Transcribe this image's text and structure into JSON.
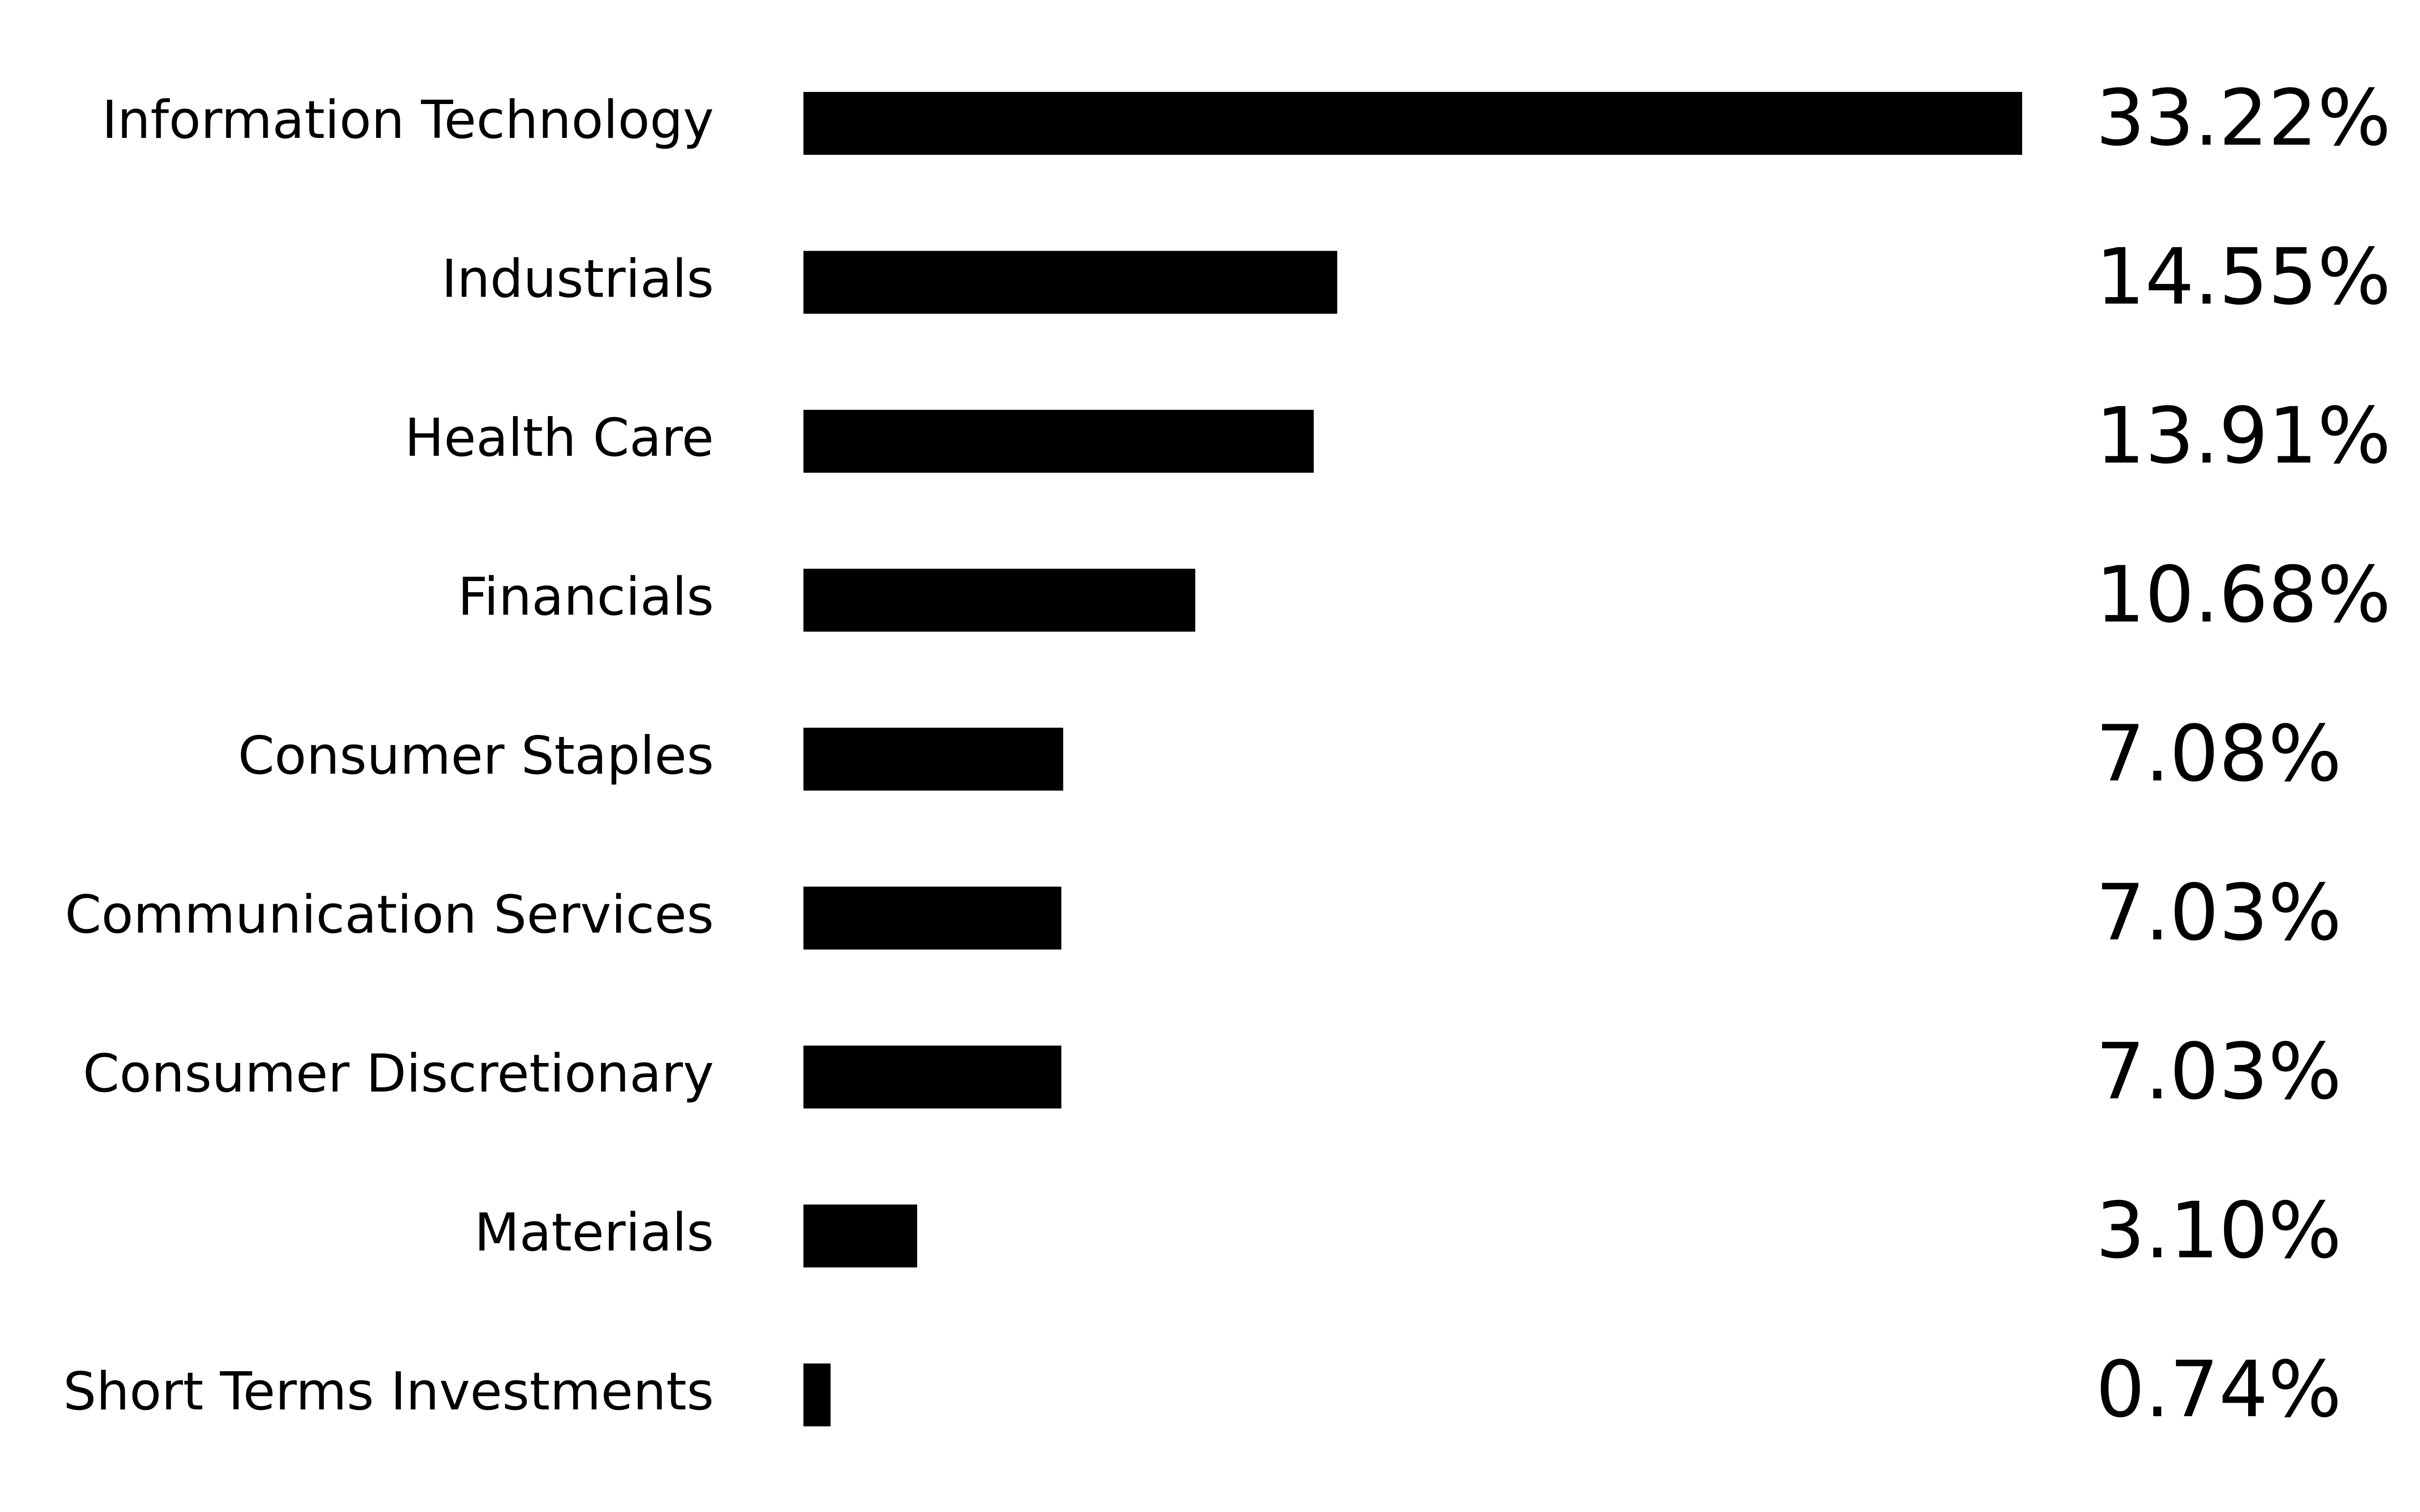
{
  "chart_data": {
    "type": "bar",
    "orientation": "horizontal",
    "categories": [
      "Information Technology",
      "Industrials",
      "Health Care",
      "Financials",
      "Consumer Staples",
      "Communication Services",
      "Consumer Discretionary",
      "Materials",
      "Short Terms Investments"
    ],
    "values": [
      33.22,
      14.55,
      13.91,
      10.68,
      7.08,
      7.03,
      7.03,
      3.1,
      0.74
    ],
    "value_labels": [
      "33.22%",
      "14.55%",
      "13.91%",
      "10.68%",
      "7.08%",
      "7.03%",
      "7.03%",
      "3.10%",
      "0.74%"
    ],
    "unit": "%",
    "title": "",
    "xlabel": "",
    "ylabel": "",
    "xlim": [
      0,
      33.22
    ],
    "grid": false,
    "legend": "none",
    "bar_color": "#000000",
    "text_color": "#000000",
    "background_color": "#ffffff"
  }
}
